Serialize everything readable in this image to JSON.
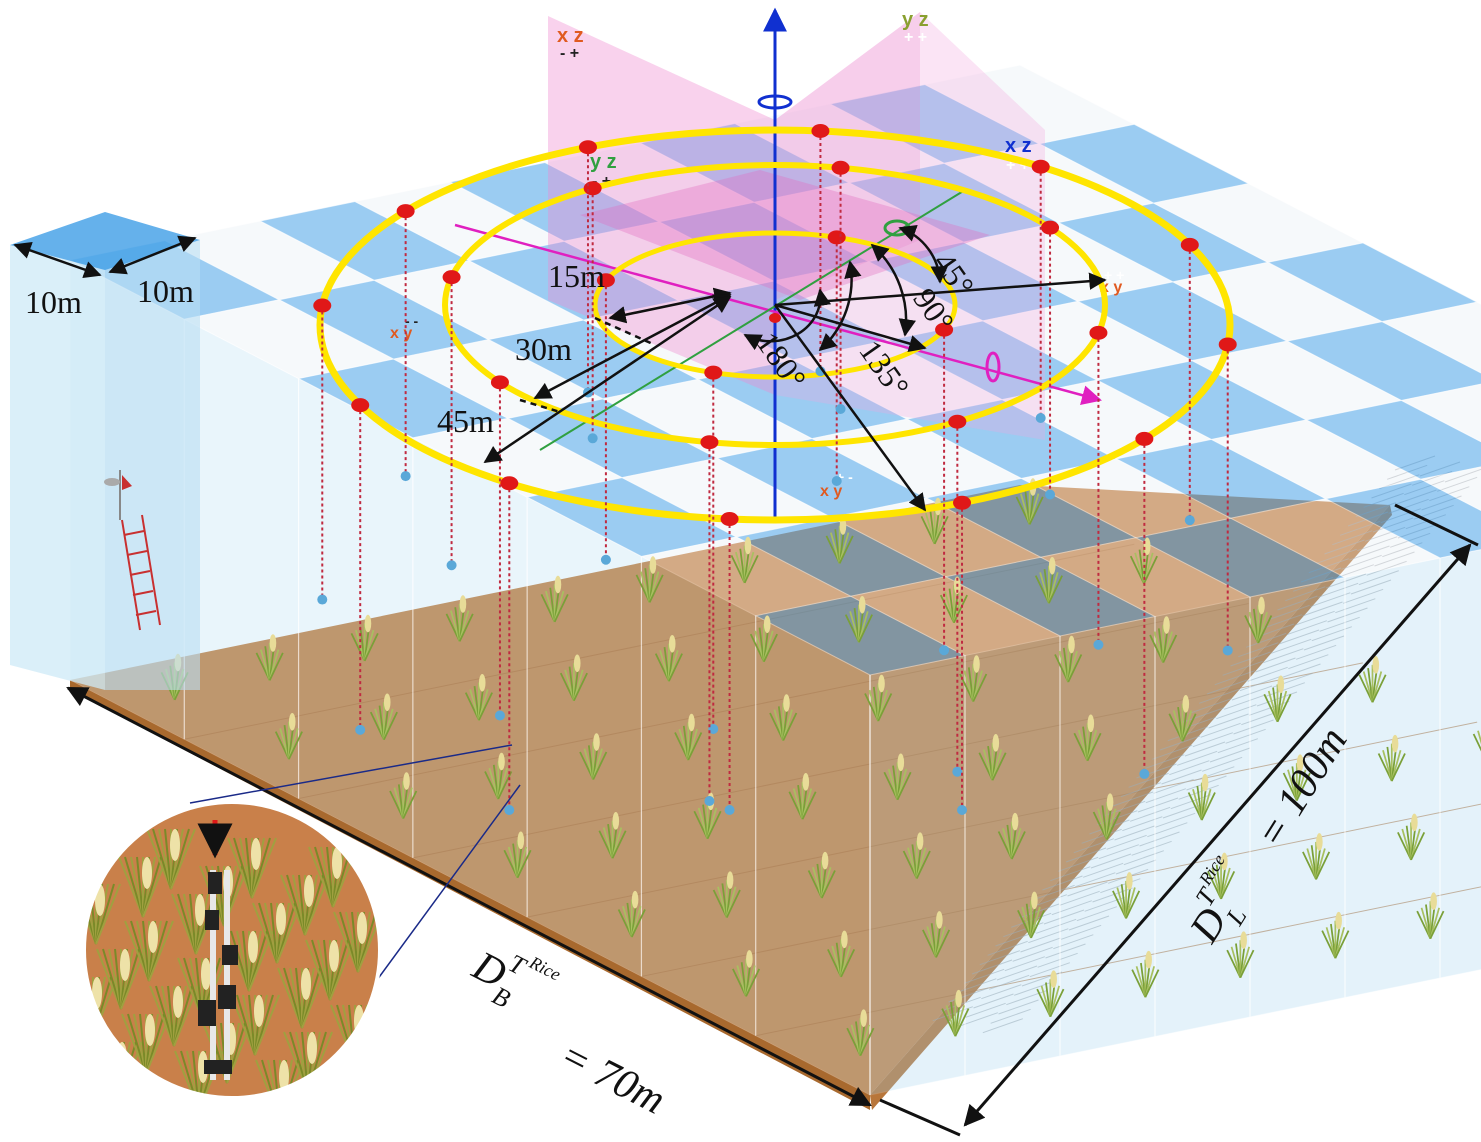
{
  "colors": {
    "ground": "#c8864a",
    "ground_edge": "#b06a2c",
    "cell_blue": "#4aa3e8",
    "cell_white": "#e8eef4",
    "glass": "#9fd3f0",
    "plane_pink": "#f08ad0",
    "ring": "#ffe500",
    "marker": "#e01818",
    "z_axis": "#1030d0",
    "x_axis": "#e020c0",
    "y_axis": "#30a040",
    "rice": "#8ab040"
  },
  "labels": {
    "cell_width": "10m",
    "cell_depth": "10m",
    "radius_inner": "15m",
    "radius_mid": "30m",
    "radius_outer": "45m",
    "angle_45": "45°",
    "angle_90": "90°",
    "angle_135": "135°",
    "angle_180": "180°",
    "breadth_symbol": "D",
    "breadth_sup": "T",
    "breadth_supsup": "Rice",
    "breadth_sub": "B",
    "breadth_value": "= 70m",
    "length_symbol": "D",
    "length_sup": "T",
    "length_supsup": "Rice",
    "length_sub": "L",
    "length_value": "= 100m"
  },
  "plane_tags": {
    "xz_a_top": "x z",
    "xz_a_sign": "- +",
    "yz_a_top": "y z",
    "yz_a_sign": "+ +",
    "xz_b_top": "x z",
    "xz_b_sign": "+ +",
    "yz_b_top": "y z",
    "yz_b_sign": "- +",
    "xy_a_top": "x y",
    "xy_a_sign": "- -",
    "xy_b_top": "x y",
    "xy_b_sign": "+ -",
    "xy_c_top": "x y",
    "xy_c_sign": "+ +"
  },
  "icons": [
    "sensor-tower-icon",
    "rice-plant-icon",
    "ladder-icon",
    "anemometer-icon",
    "rotation-ring-icon"
  ]
}
